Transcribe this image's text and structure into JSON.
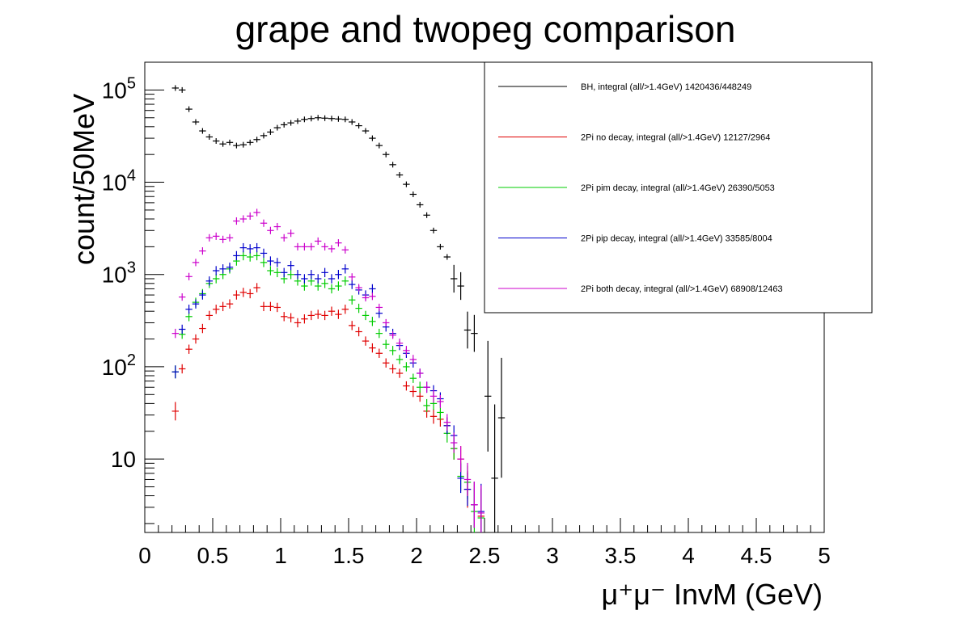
{
  "chart_data": {
    "type": "scatter",
    "title": "grape and twopeg comparison",
    "xlabel": "μ⁺μ⁻ InvM (GeV)",
    "ylabel": "count/50MeV",
    "xlim": [
      0,
      5
    ],
    "ylim": [
      1.6,
      200000
    ],
    "y_scale": "log",
    "grid": false,
    "legend_position": "top-right",
    "x_tick_labels": [
      "0",
      "0.5",
      "1",
      "1.5",
      "2",
      "2.5",
      "3",
      "3.5",
      "4",
      "4.5",
      "5"
    ],
    "y_tick_labels": [
      {
        "value": 10,
        "label": "10"
      },
      {
        "value": 100,
        "label": "10",
        "exp": "2"
      },
      {
        "value": 1000,
        "label": "10",
        "exp": "3"
      },
      {
        "value": 10000,
        "label": "10",
        "exp": "4"
      },
      {
        "value": 100000,
        "label": "10",
        "exp": "5"
      }
    ],
    "series": [
      {
        "name": "BH, integral (all/>1.4GeV) 1420436/448249",
        "color": "#000000",
        "x": [
          0.225,
          0.275,
          0.325,
          0.375,
          0.425,
          0.475,
          0.525,
          0.575,
          0.625,
          0.675,
          0.725,
          0.775,
          0.825,
          0.875,
          0.925,
          0.975,
          1.025,
          1.075,
          1.125,
          1.175,
          1.225,
          1.275,
          1.325,
          1.375,
          1.425,
          1.475,
          1.525,
          1.575,
          1.625,
          1.675,
          1.725,
          1.775,
          1.825,
          1.875,
          1.925,
          1.975,
          2.025,
          2.075,
          2.125,
          2.175,
          2.225,
          2.275,
          2.325,
          2.375,
          2.425,
          2.475,
          2.525,
          2.575,
          2.625
        ],
        "y": [
          105000,
          100000,
          62000,
          45000,
          36000,
          31000,
          28000,
          26000,
          27000,
          25000,
          25500,
          27000,
          29000,
          32000,
          35000,
          39000,
          42000,
          44000,
          46000,
          48000,
          49000,
          50000,
          49500,
          49000,
          48500,
          48000,
          45000,
          41000,
          36000,
          30000,
          25000,
          20000,
          15500,
          12000,
          9500,
          7400,
          5700,
          4400,
          3000,
          2000,
          1550,
          900,
          750,
          250,
          230,
          null,
          48,
          6.2,
          28
        ],
        "yerr": [
          0,
          0,
          0,
          0,
          0,
          0,
          0,
          0,
          0,
          0,
          0,
          0,
          0,
          0,
          0,
          0,
          0,
          0,
          0,
          0,
          0,
          0,
          0,
          0,
          0,
          0,
          0,
          0,
          0,
          0,
          0,
          0,
          0,
          0,
          0,
          0,
          0,
          0,
          0,
          0,
          0,
          0.15,
          0.15,
          0.2,
          0.2,
          0.25,
          0.6,
          0.8,
          0.65
        ]
      },
      {
        "name": "2Pi no decay, integral (all/>1.4GeV) 12127/2964",
        "color": "#e00000",
        "x": [
          0.225,
          0.275,
          0.325,
          0.375,
          0.425,
          0.475,
          0.525,
          0.575,
          0.625,
          0.675,
          0.725,
          0.775,
          0.825,
          0.875,
          0.925,
          0.975,
          1.025,
          1.075,
          1.125,
          1.175,
          1.225,
          1.275,
          1.325,
          1.375,
          1.425,
          1.475,
          1.525,
          1.575,
          1.625,
          1.675,
          1.725,
          1.775,
          1.825,
          1.875,
          1.925,
          1.975,
          2.025,
          2.075,
          2.125,
          2.175,
          2.225,
          2.275,
          2.325,
          2.375,
          2.425,
          2.475
        ],
        "y": [
          33,
          95,
          155,
          200,
          260,
          360,
          420,
          450,
          480,
          600,
          640,
          620,
          720,
          450,
          450,
          440,
          350,
          340,
          300,
          330,
          360,
          370,
          360,
          400,
          370,
          420,
          280,
          240,
          190,
          160,
          140,
          110,
          95,
          85,
          62,
          54,
          48,
          33,
          29,
          27,
          23,
          13,
          10,
          4.7,
          3.2,
          2.4
        ],
        "yerr": [
          0.1,
          0.05,
          0.05,
          0.05,
          0.05,
          0.05,
          0.05,
          0.05,
          0.05,
          0.05,
          0.05,
          0.05,
          0.05,
          0.05,
          0.05,
          0.05,
          0.05,
          0.05,
          0.05,
          0.05,
          0.05,
          0.05,
          0.05,
          0.05,
          0.05,
          0.05,
          0.05,
          0.05,
          0.05,
          0.05,
          0.05,
          0.05,
          0.05,
          0.05,
          0.05,
          0.06,
          0.06,
          0.07,
          0.08,
          0.08,
          0.09,
          0.12,
          0.14,
          0.2,
          0.25,
          0.3
        ]
      },
      {
        "name": "2Pi pim decay, integral (all/>1.4GeV) 26390/5053",
        "color": "#00cc00",
        "x": [
          0.225,
          0.275,
          0.325,
          0.375,
          0.425,
          0.475,
          0.525,
          0.575,
          0.625,
          0.675,
          0.725,
          0.775,
          0.825,
          0.875,
          0.925,
          0.975,
          1.025,
          1.075,
          1.125,
          1.175,
          1.225,
          1.275,
          1.325,
          1.375,
          1.425,
          1.475,
          1.525,
          1.575,
          1.625,
          1.675,
          1.725,
          1.775,
          1.825,
          1.875,
          1.925,
          1.975,
          2.025,
          2.075,
          2.125,
          2.175,
          2.225,
          2.275,
          2.325,
          2.375,
          2.425,
          2.475
        ],
        "y": [
          88,
          225,
          350,
          500,
          620,
          800,
          900,
          1000,
          1150,
          1400,
          1600,
          1550,
          1600,
          1350,
          1100,
          1050,
          900,
          1000,
          850,
          750,
          850,
          750,
          800,
          700,
          750,
          850,
          530,
          430,
          360,
          310,
          230,
          175,
          150,
          120,
          100,
          75,
          60,
          38,
          40,
          32,
          19,
          13,
          6.5,
          5.6,
          2.7,
          2.3
        ],
        "yerr": [
          0.07,
          0.05,
          0.05,
          0.05,
          0.05,
          0.05,
          0.05,
          0.05,
          0.05,
          0.05,
          0.05,
          0.05,
          0.05,
          0.05,
          0.05,
          0.05,
          0.05,
          0.05,
          0.05,
          0.05,
          0.05,
          0.05,
          0.05,
          0.05,
          0.05,
          0.05,
          0.05,
          0.05,
          0.05,
          0.05,
          0.05,
          0.05,
          0.05,
          0.05,
          0.05,
          0.05,
          0.06,
          0.07,
          0.07,
          0.08,
          0.1,
          0.12,
          0.16,
          0.18,
          0.25,
          0.3
        ]
      },
      {
        "name": "2Pi pip decay, integral (all/>1.4GeV) 33585/8004",
        "color": "#0000cc",
        "x": [
          0.225,
          0.275,
          0.325,
          0.375,
          0.425,
          0.475,
          0.525,
          0.575,
          0.625,
          0.675,
          0.725,
          0.775,
          0.825,
          0.875,
          0.925,
          0.975,
          1.025,
          1.075,
          1.125,
          1.175,
          1.225,
          1.275,
          1.325,
          1.375,
          1.425,
          1.475,
          1.525,
          1.575,
          1.625,
          1.675,
          1.725,
          1.775,
          1.825,
          1.875,
          1.925,
          1.975,
          2.025,
          2.075,
          2.125,
          2.175,
          2.225,
          2.275,
          2.325,
          2.375,
          2.425,
          2.475
        ],
        "y": [
          88,
          255,
          420,
          480,
          600,
          850,
          1100,
          1150,
          1200,
          1600,
          1950,
          1900,
          1950,
          1700,
          1400,
          1350,
          1050,
          1250,
          1000,
          900,
          1000,
          900,
          1050,
          900,
          1000,
          1150,
          780,
          680,
          600,
          700,
          380,
          270,
          230,
          170,
          140,
          110,
          85,
          60,
          55,
          45,
          23,
          18,
          6.2,
          4.7,
          3.2,
          2.7
        ],
        "yerr": [
          0.07,
          0.05,
          0.05,
          0.05,
          0.05,
          0.05,
          0.05,
          0.05,
          0.05,
          0.05,
          0.05,
          0.05,
          0.05,
          0.05,
          0.05,
          0.05,
          0.05,
          0.05,
          0.05,
          0.05,
          0.05,
          0.05,
          0.05,
          0.05,
          0.05,
          0.05,
          0.05,
          0.05,
          0.05,
          0.05,
          0.05,
          0.05,
          0.05,
          0.05,
          0.05,
          0.05,
          0.05,
          0.06,
          0.06,
          0.07,
          0.09,
          0.11,
          0.16,
          0.18,
          0.25,
          0.3
        ]
      },
      {
        "name": "2Pi both decay, integral (all/>1.4GeV) 68908/12463",
        "color": "#cc00cc",
        "x": [
          0.225,
          0.275,
          0.325,
          0.375,
          0.425,
          0.475,
          0.525,
          0.575,
          0.625,
          0.675,
          0.725,
          0.775,
          0.825,
          0.875,
          0.925,
          0.975,
          1.025,
          1.075,
          1.125,
          1.175,
          1.225,
          1.275,
          1.325,
          1.375,
          1.425,
          1.475,
          1.525,
          1.575,
          1.625,
          1.675,
          1.725,
          1.775,
          1.825,
          1.875,
          1.925,
          1.975,
          2.025,
          2.075,
          2.125,
          2.175,
          2.225,
          2.275,
          2.325,
          2.375,
          2.425,
          2.475
        ],
        "y": [
          230,
          570,
          950,
          1350,
          1800,
          2500,
          2600,
          2400,
          2500,
          3800,
          4000,
          4300,
          4700,
          3600,
          3000,
          3300,
          2500,
          2800,
          2000,
          2000,
          2000,
          2300,
          2000,
          1900,
          2200,
          1850,
          940,
          720,
          560,
          580,
          440,
          300,
          220,
          180,
          150,
          120,
          85,
          60,
          48,
          42,
          25,
          15,
          10,
          6,
          3.2,
          2.6
        ],
        "yerr": [
          0.05,
          0.04,
          0.04,
          0.04,
          0.04,
          0.04,
          0.04,
          0.04,
          0.04,
          0.04,
          0.04,
          0.04,
          0.04,
          0.04,
          0.04,
          0.04,
          0.04,
          0.04,
          0.04,
          0.04,
          0.04,
          0.04,
          0.04,
          0.04,
          0.04,
          0.04,
          0.04,
          0.04,
          0.04,
          0.04,
          0.04,
          0.04,
          0.04,
          0.05,
          0.05,
          0.05,
          0.05,
          0.06,
          0.07,
          0.07,
          0.09,
          0.11,
          0.14,
          0.18,
          0.25,
          0.3
        ]
      }
    ]
  }
}
